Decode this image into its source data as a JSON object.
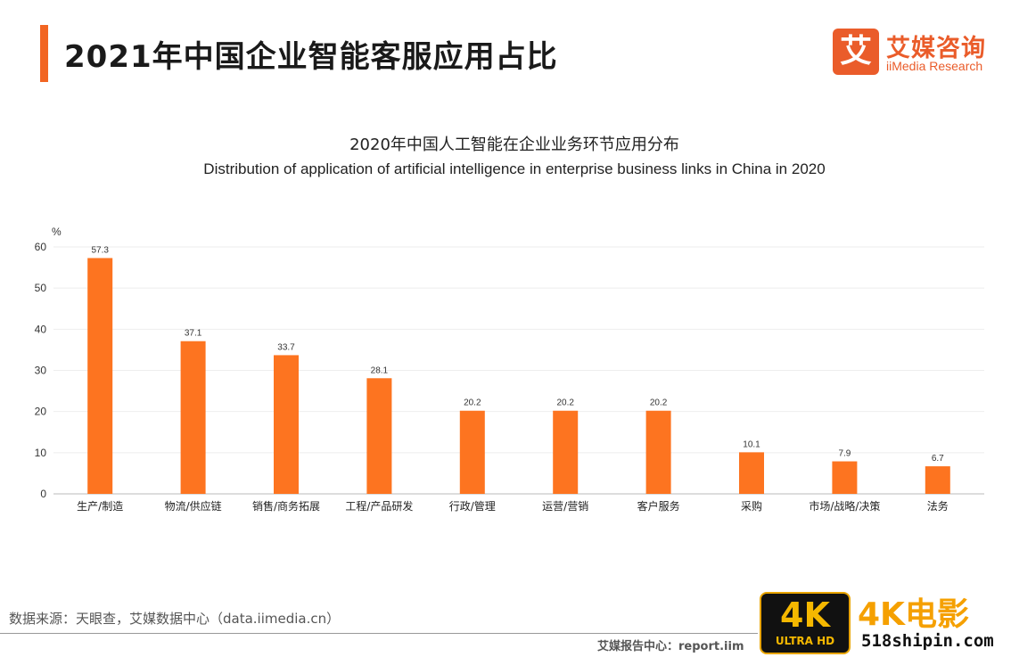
{
  "header": {
    "title": "2021年中国企业智能客服应用占比",
    "accent_color": "#f26522"
  },
  "logo": {
    "mark": "艾",
    "name": "艾媒咨询",
    "sub": "iiMedia Research",
    "color": "#ea5c2a"
  },
  "chart_data": {
    "type": "bar",
    "title": "2020年中国人工智能在企业业务环节应用分布",
    "subtitle": "Distribution of application of artificial intelligence in enterprise business links in China in 2020",
    "ylabel": "%",
    "ylim": [
      0,
      60
    ],
    "yticks": [
      0,
      10,
      20,
      30,
      40,
      50,
      60
    ],
    "grid": true,
    "bar_color": "#fd7420",
    "categories": [
      "生产/制造",
      "物流/供应链",
      "销售/商务拓展",
      "工程/产品研发",
      "行政/管理",
      "运营/营销",
      "客户服务",
      "采购",
      "市场/战略/决策",
      "法务"
    ],
    "values": [
      57.3,
      37.1,
      33.7,
      28.1,
      20.2,
      20.2,
      20.2,
      10.1,
      7.9,
      6.7
    ],
    "data_labels": [
      "57.3",
      "37.1",
      "33.7",
      "28.1",
      "20.2",
      "20.2",
      "20.2",
      "10.1",
      "7.9",
      "6.7"
    ]
  },
  "footer": {
    "source": "数据来源：天眼查，艾媒数据中心（data.iimedia.cn）",
    "report": "艾媒报告中心：report.iim"
  },
  "watermark": {
    "badge": "4K",
    "badge_sub": "ULTRA HD",
    "name": "4K电影",
    "url": "518shipin.com"
  }
}
